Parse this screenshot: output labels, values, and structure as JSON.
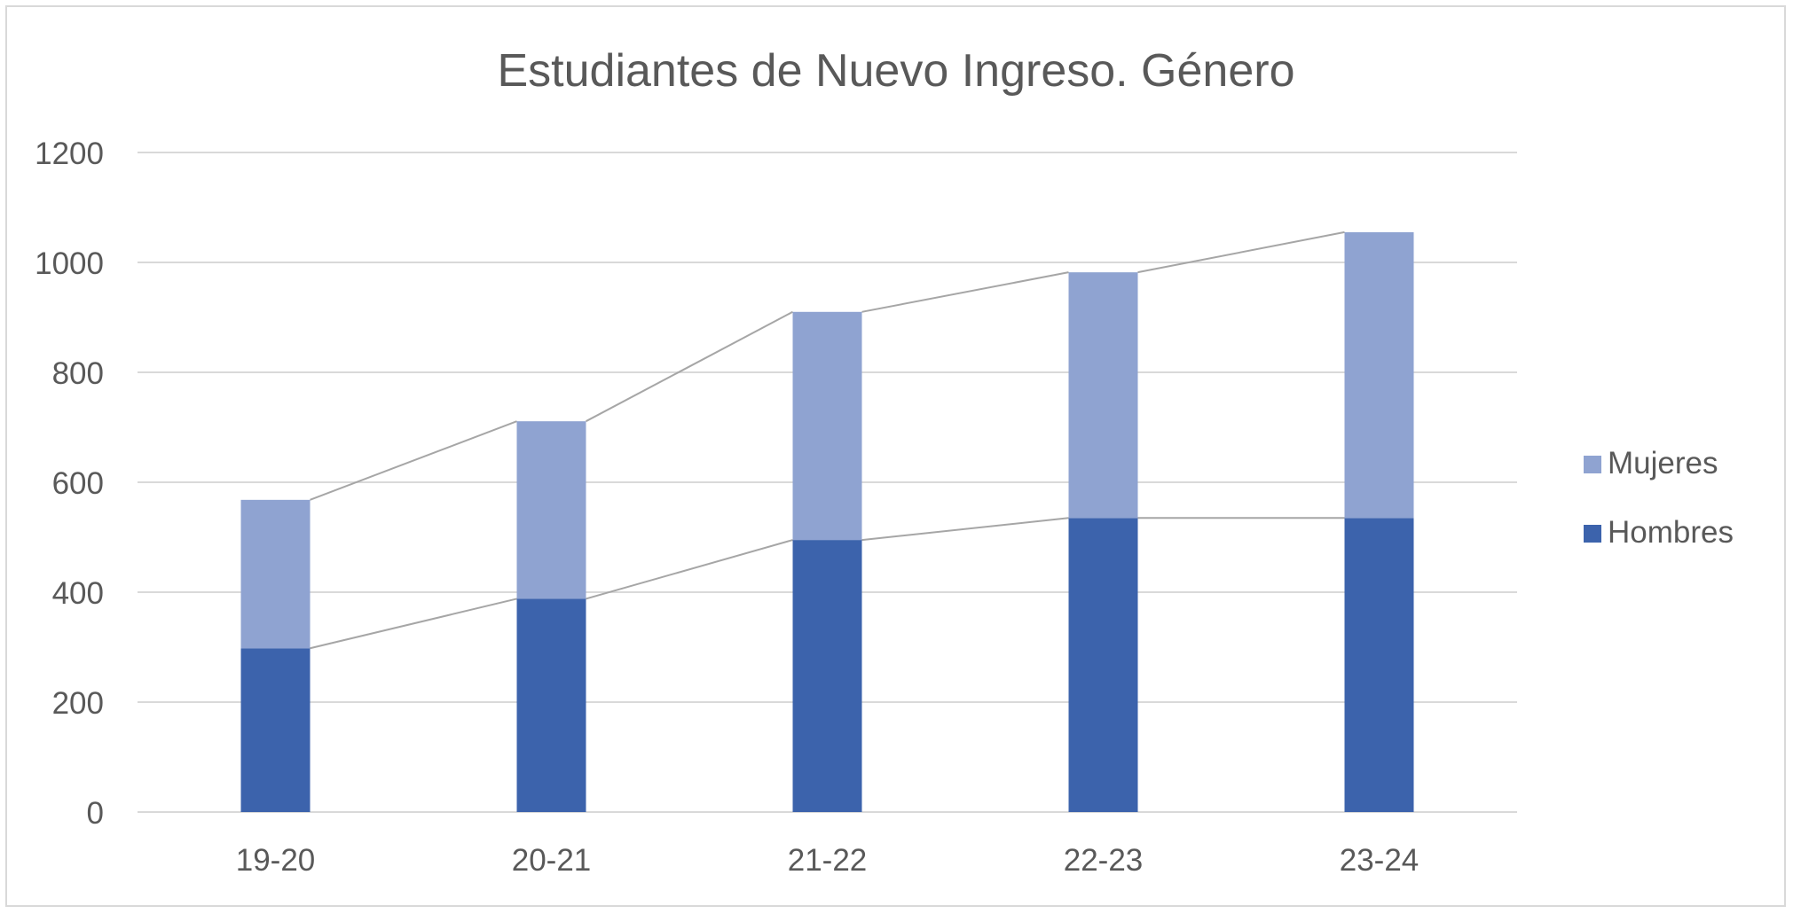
{
  "chart_data": {
    "type": "bar",
    "stacked": true,
    "title": "Estudiantes de Nuevo Ingreso. Género",
    "xlabel": "",
    "ylabel": "",
    "categories": [
      "19-20",
      "20-21",
      "21-22",
      "22-23",
      "23-24"
    ],
    "series": [
      {
        "name": "Hombres",
        "values": [
          298,
          388,
          495,
          535,
          535
        ],
        "color": "#3c63ac"
      },
      {
        "name": "Mujeres",
        "values": [
          270,
          323,
          415,
          447,
          520
        ],
        "color": "#8fa3d1"
      }
    ],
    "ylim": [
      0,
      1200
    ],
    "yticks": [
      "0",
      "200",
      "400",
      "600",
      "800",
      "1000",
      "1200"
    ],
    "grid": true,
    "series_lines": true,
    "legend": "right",
    "colors": {
      "grid": "#d9d9d9",
      "text": "#595959",
      "title": "#595959",
      "connector": "#a6a6a6"
    }
  }
}
